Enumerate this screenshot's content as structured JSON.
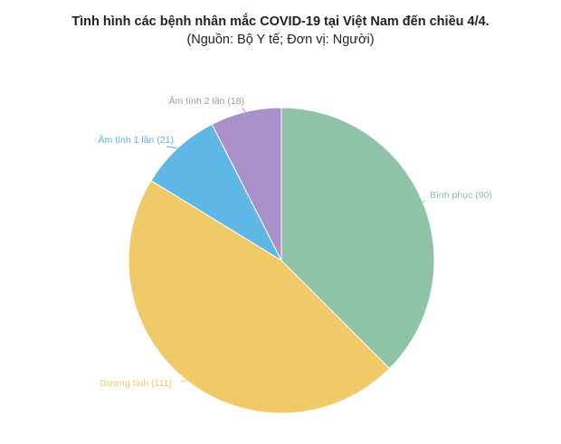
{
  "chart_data": {
    "type": "pie",
    "title": "Tình hình các bệnh nhân mắc COVID-19 tại Việt Nam đến chiều 4/4.",
    "subtitle": "(Nguồn: Bộ Y tế; Đơn vị: Người)",
    "slices": [
      {
        "label": "Bình phục (90)",
        "value": 90,
        "color": "#8ec3a7"
      },
      {
        "label": "Dương tính (111)",
        "value": 111,
        "color": "#f0ca68"
      },
      {
        "label": "Âm tính 1 lần (21)",
        "value": 21,
        "color": "#5fb7e5"
      },
      {
        "label": "Âm tính 2 lần (18)",
        "value": 18,
        "color": "#aa90c8"
      }
    ],
    "start": "top",
    "direction": "clockwise"
  }
}
